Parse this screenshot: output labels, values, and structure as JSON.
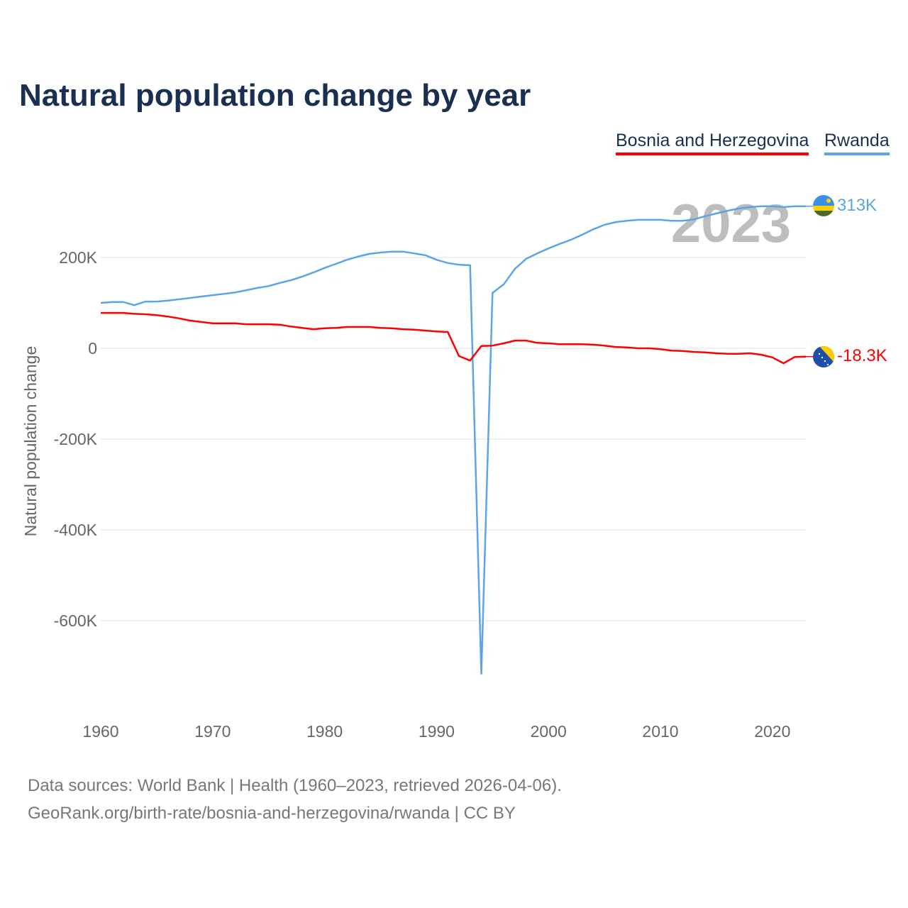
{
  "title": "Natural population change by year",
  "footer": {
    "line1": "Data sources: World Bank | Health (1960–2023, retrieved 2026-04-06).",
    "line2": "GeoRank.org/birth-rate/bosnia-and-herzegovina/rwanda | CC BY"
  },
  "chart_data": {
    "type": "line",
    "title": "Natural population change by year",
    "xlabel": "",
    "ylabel": "Natural population change",
    "xlim": [
      1960,
      2023
    ],
    "ylim": [
      -750000,
      330000
    ],
    "xticks": [
      1960,
      1970,
      1980,
      1990,
      2000,
      2010,
      2020
    ],
    "xtick_labels": [
      "1960",
      "1970",
      "1980",
      "1990",
      "2000",
      "2010",
      "2020"
    ],
    "yticks": [
      200000,
      0,
      -200000,
      -400000,
      -600000
    ],
    "ytick_labels": [
      "200K",
      "0",
      "-200K",
      "-400K",
      "-600K"
    ],
    "grid": true,
    "legend_position": "top-right",
    "watermark_year": "2023",
    "x": [
      1960,
      1961,
      1962,
      1963,
      1964,
      1965,
      1966,
      1967,
      1968,
      1969,
      1970,
      1971,
      1972,
      1973,
      1974,
      1975,
      1976,
      1977,
      1978,
      1979,
      1980,
      1981,
      1982,
      1983,
      1984,
      1985,
      1986,
      1987,
      1988,
      1989,
      1990,
      1991,
      1992,
      1993,
      1994,
      1995,
      1996,
      1997,
      1998,
      1999,
      2000,
      2001,
      2002,
      2003,
      2004,
      2005,
      2006,
      2007,
      2008,
      2009,
      2010,
      2011,
      2012,
      2013,
      2014,
      2015,
      2016,
      2017,
      2018,
      2019,
      2020,
      2021,
      2022,
      2023
    ],
    "series": [
      {
        "name": "Bosnia and Herzegovina",
        "color": "#ff0000",
        "end_label": "-18.3K",
        "values": [
          78000,
          78000,
          78000,
          76000,
          75000,
          73000,
          70000,
          66000,
          61000,
          58000,
          55000,
          55000,
          55000,
          53000,
          53000,
          53000,
          52000,
          48000,
          45000,
          42000,
          44000,
          45000,
          47000,
          47000,
          47000,
          45000,
          44000,
          42000,
          41000,
          39000,
          37000,
          36000,
          -17000,
          -27000,
          5000,
          6000,
          11000,
          17000,
          17000,
          12000,
          11000,
          9000,
          9000,
          9000,
          8000,
          6000,
          3000,
          2000,
          0,
          0,
          -2000,
          -5000,
          -6000,
          -8000,
          -9000,
          -11000,
          -12000,
          -12000,
          -11000,
          -14000,
          -20000,
          -33000,
          -19000,
          -18300
        ]
      },
      {
        "name": "Rwanda",
        "color": "#5ba4e8",
        "end_label": "313K",
        "values": [
          100000,
          102000,
          102000,
          95000,
          103000,
          103000,
          105000,
          108000,
          111000,
          114000,
          117000,
          120000,
          123000,
          128000,
          133000,
          137000,
          144000,
          150000,
          158000,
          167000,
          177000,
          186000,
          195000,
          202000,
          208000,
          211000,
          213000,
          213000,
          209000,
          205000,
          195000,
          188000,
          184000,
          183000,
          -717000,
          122000,
          141000,
          175000,
          197000,
          209000,
          220000,
          230000,
          239000,
          250000,
          262000,
          272000,
          278000,
          281000,
          283000,
          283000,
          283000,
          281000,
          281000,
          284000,
          291000,
          297000,
          303000,
          308000,
          311000,
          313000,
          313000,
          311000,
          313000,
          313000
        ]
      }
    ]
  }
}
